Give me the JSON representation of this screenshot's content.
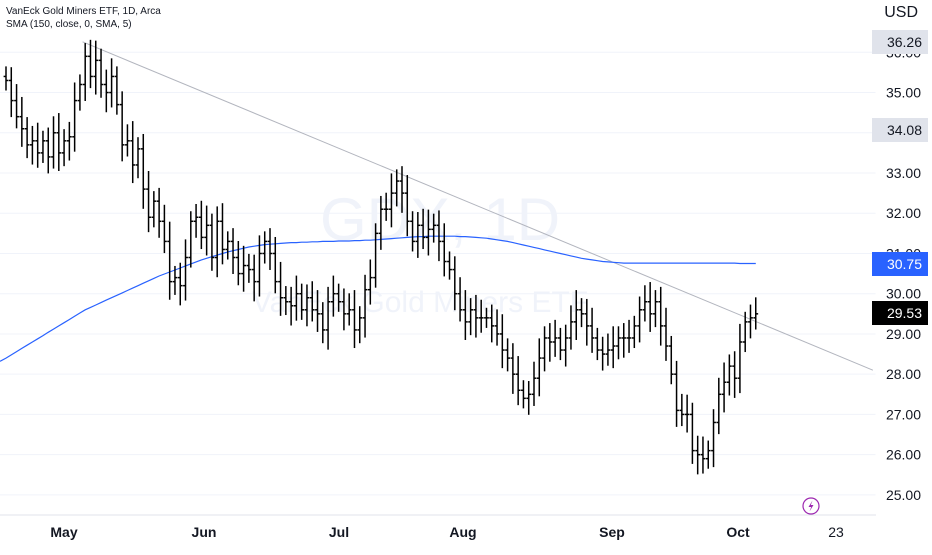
{
  "header": {
    "title": "VanEck Gold Miners ETF, 1D, Arca",
    "indicator": "SMA (150, close, 0, SMA, 5)"
  },
  "watermark": {
    "symbol": "GDX, 1D",
    "name": "VanEck Gold Miners ETF"
  },
  "axis": {
    "currency": "USD"
  },
  "price_labels": [
    {
      "value": "36.26",
      "bg": "#e0e3eb",
      "fg": "#131722",
      "y": 36.26
    },
    {
      "value": "34.08",
      "bg": "#e0e3eb",
      "fg": "#131722",
      "y": 34.08
    },
    {
      "value": "30.75",
      "bg": "#2962ff",
      "fg": "#ffffff",
      "y": 30.75
    },
    {
      "value": "29.53",
      "bg": "#000000",
      "fg": "#ffffff",
      "y": 29.53
    }
  ],
  "colors": {
    "bars": "#000000",
    "sma": "#2962ff",
    "trendline": "#b2b5be",
    "grid": "#f0f3fa"
  },
  "flash_icon": "lightning-icon",
  "chart_data": {
    "type": "ohlc",
    "interval": "1D",
    "ylim": [
      24.5,
      37.3
    ],
    "y_ticks": [
      25.0,
      26.0,
      27.0,
      28.0,
      29.0,
      30.0,
      31.0,
      32.0,
      33.0,
      34.0,
      35.0,
      36.0
    ],
    "x_ticks": [
      "May",
      "Jun",
      "Jul",
      "Aug",
      "Sep",
      "Oct",
      "23"
    ],
    "grid": true,
    "series": [
      {
        "name": "GDX",
        "type": "ohlc",
        "close": [
          35.3,
          34.8,
          34.4,
          34.1,
          33.7,
          33.8,
          33.5,
          33.8,
          33.4,
          34.0,
          33.5,
          33.8,
          33.9,
          34.8,
          35.2,
          35.9,
          35.4,
          35.8,
          35.2,
          35.0,
          35.4,
          34.7,
          33.7,
          33.8,
          33.2,
          33.6,
          32.6,
          31.9,
          32.3,
          31.8,
          31.3,
          30.3,
          30.4,
          30.2,
          30.9,
          31.8,
          31.9,
          31.4,
          31.7,
          30.9,
          31.8,
          31.1,
          31.3,
          30.9,
          30.5,
          30.7,
          30.6,
          30.3,
          31.0,
          31.3,
          31.0,
          30.3,
          29.9,
          29.8,
          29.7,
          30.0,
          29.6,
          29.9,
          29.6,
          29.5,
          29.1,
          29.8,
          30.0,
          29.8,
          29.5,
          29.6,
          29.1,
          29.4,
          30.1,
          30.4,
          31.5,
          32.1,
          32.1,
          32.5,
          32.8,
          32.5,
          31.8,
          31.3,
          31.7,
          31.4,
          31.6,
          31.7,
          31.3,
          30.8,
          30.6,
          30.0,
          29.6,
          29.3,
          29.6,
          29.4,
          29.4,
          29.4,
          29.2,
          29.0,
          28.6,
          28.4,
          28.0,
          27.6,
          27.4,
          27.5,
          27.9,
          28.4,
          28.9,
          28.8,
          28.9,
          28.6,
          28.9,
          29.3,
          29.6,
          29.5,
          29.2,
          28.9,
          28.6,
          28.5,
          28.6,
          28.7,
          28.9,
          28.9,
          28.9,
          29.2,
          29.6,
          29.8,
          29.5,
          29.8,
          29.2,
          28.7,
          28.0,
          27.1,
          27.0,
          27.0,
          26.1,
          26.0,
          25.9,
          26.1,
          26.8,
          27.5,
          27.8,
          28.2,
          27.9,
          28.8,
          29.3,
          29.4,
          29.5
        ],
        "sma150": [
          28.4,
          28.48,
          28.56,
          28.64,
          28.72,
          28.8,
          28.88,
          28.96,
          29.04,
          29.12,
          29.2,
          29.28,
          29.36,
          29.44,
          29.52,
          29.6,
          29.66,
          29.72,
          29.78,
          29.84,
          29.9,
          29.96,
          30.02,
          30.08,
          30.14,
          30.2,
          30.26,
          30.32,
          30.38,
          30.44,
          30.49,
          30.54,
          30.59,
          30.64,
          30.69,
          30.74,
          30.79,
          30.84,
          30.88,
          30.92,
          30.96,
          31.0,
          31.04,
          31.07,
          31.1,
          31.13,
          31.16,
          31.18,
          31.2,
          31.22,
          31.23,
          31.24,
          31.25,
          31.26,
          31.27,
          31.27,
          31.28,
          31.28,
          31.29,
          31.29,
          31.3,
          31.3,
          31.3,
          31.31,
          31.31,
          31.31,
          31.32,
          31.32,
          31.33,
          31.33,
          31.34,
          31.35,
          31.36,
          31.37,
          31.38,
          31.39,
          31.4,
          31.41,
          31.42,
          31.42,
          31.43,
          31.43,
          31.43,
          31.43,
          31.43,
          31.43,
          31.42,
          31.42,
          31.41,
          31.4,
          31.39,
          31.38,
          31.36,
          31.34,
          31.32,
          31.3,
          31.27,
          31.24,
          31.21,
          31.18,
          31.15,
          31.12,
          31.09,
          31.06,
          31.03,
          31.0,
          30.97,
          30.94,
          30.91,
          30.88,
          30.86,
          30.84,
          30.82,
          30.8,
          30.79,
          30.78,
          30.77,
          30.76,
          30.76,
          30.76,
          30.76,
          30.76,
          30.76,
          30.76,
          30.76,
          30.76,
          30.76,
          30.76,
          30.76,
          30.76,
          30.76,
          30.76,
          30.76,
          30.76,
          30.76,
          30.76,
          30.76,
          30.76,
          30.76,
          30.75,
          30.75,
          30.75,
          30.75
        ]
      },
      {
        "name": "Trendline",
        "type": "line",
        "x": [
          0,
          146
        ],
        "y": [
          36.26,
          28.1
        ]
      }
    ]
  }
}
